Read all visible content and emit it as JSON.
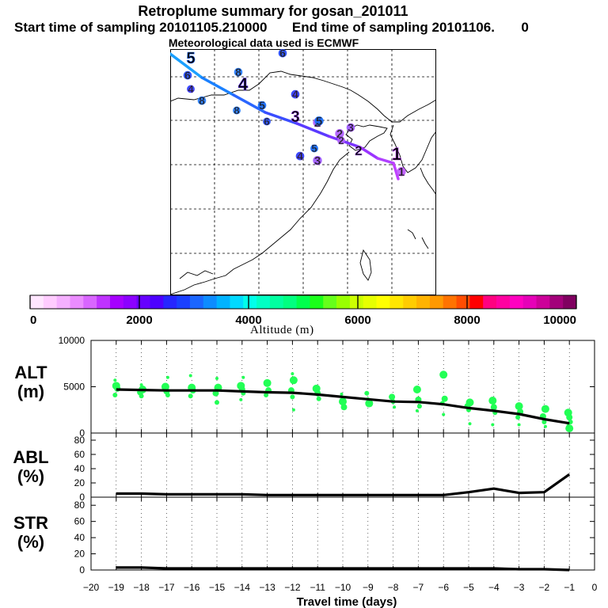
{
  "header": {
    "title": "Retroplume summary for gosan_201011",
    "start_label": "Start time of sampling 20101105.210000",
    "end_label": "End time of sampling 20101106.",
    "end_suffix": "0",
    "met_label": "Meteorological data used is ECMWF"
  },
  "colorbar": {
    "title": "Altitude (m)",
    "ticks": [
      "0",
      "2000",
      "4000",
      "6000",
      "8000",
      "10000"
    ],
    "colors": [
      "#ffe6ff",
      "#ffccff",
      "#f5b0ff",
      "#eb8cff",
      "#d966ff",
      "#bf33ff",
      "#a600ff",
      "#8c00ff",
      "#6600ff",
      "#4d00ff",
      "#2626ff",
      "#1a40ff",
      "#1a66ff",
      "#0d8cff",
      "#00b3ff",
      "#00d9ff",
      "#00ffea",
      "#00ffc4",
      "#00ffa0",
      "#00ff80",
      "#00ff4d",
      "#1aff1a",
      "#66ff1a",
      "#99ff00",
      "#ccff00",
      "#e6ff00",
      "#ffff00",
      "#ffe600",
      "#ffcc00",
      "#ffb300",
      "#ff9900",
      "#ff7300",
      "#ff4d00",
      "#ff0000",
      "#ff0080",
      "#ff00a0",
      "#ff00c0",
      "#e600b8",
      "#cc0099",
      "#a3007a",
      "#800060"
    ]
  },
  "panels": {
    "alt": {
      "label": "ALT",
      "unit": "(m)",
      "yticks": [
        "0",
        "5000",
        "10000"
      ]
    },
    "abl": {
      "label": "ABL",
      "unit": "(%)",
      "yticks": [
        "0",
        "20",
        "40",
        "60",
        "80"
      ]
    },
    "str": {
      "label": "STR",
      "unit": "(%)",
      "yticks": [
        "0",
        "20",
        "40",
        "60",
        "80"
      ]
    },
    "xlabel": "Travel time (days)",
    "xticks": [
      "−20",
      "−19",
      "−18",
      "−17",
      "−16",
      "−15",
      "−14",
      "−13",
      "−12",
      "−11",
      "−10",
      "−9",
      "−8",
      "−7",
      "−6",
      "−5",
      "−4",
      "−3",
      "−2",
      "−1",
      "0"
    ]
  },
  "map": {
    "day_markers": [
      {
        "label": "1",
        "color": "#c040ff"
      },
      {
        "label": "2",
        "color": "#b060ff"
      },
      {
        "label": "3",
        "color": "#a040ff"
      },
      {
        "label": "4",
        "color": "#6030ff"
      },
      {
        "label": "5",
        "color": "#1a66ff"
      },
      {
        "label": "6",
        "color": "#3050ff"
      },
      {
        "label": "8",
        "color": "#2a78ff"
      }
    ]
  },
  "chart_data": [
    {
      "type": "line",
      "title": "ALT",
      "ylabel": "ALT (m)",
      "xlabel": "Travel time (days)",
      "xlim": [
        -20,
        0
      ],
      "ylim": [
        0,
        10000
      ],
      "series": [
        {
          "name": "median altitude",
          "x": [
            -19,
            -18,
            -17,
            -16,
            -15,
            -14,
            -13,
            -12,
            -11,
            -10,
            -9,
            -8,
            -7,
            -6,
            -5,
            -4,
            -3,
            -2,
            -1
          ],
          "values": [
            4700,
            4650,
            4600,
            4600,
            4600,
            4500,
            4400,
            4350,
            4150,
            3900,
            3650,
            3400,
            3350,
            3100,
            2700,
            2400,
            2050,
            1500,
            1050
          ]
        }
      ],
      "scatter": {
        "name": "particle clusters",
        "points": [
          [
            -19,
            5700
          ],
          [
            -19,
            5100
          ],
          [
            -19,
            4800
          ],
          [
            -19,
            4100
          ],
          [
            -18,
            5200
          ],
          [
            -18,
            4700
          ],
          [
            -18,
            4400
          ],
          [
            -18,
            4000
          ],
          [
            -17,
            6000
          ],
          [
            -17,
            5000
          ],
          [
            -17,
            4500
          ],
          [
            -17,
            4100
          ],
          [
            -16,
            6200
          ],
          [
            -16,
            4900
          ],
          [
            -16,
            4600
          ],
          [
            -16,
            4000
          ],
          [
            -15,
            5900
          ],
          [
            -15,
            4900
          ],
          [
            -15,
            4300
          ],
          [
            -15,
            3300
          ],
          [
            -14,
            6000
          ],
          [
            -14,
            5100
          ],
          [
            -14,
            4700
          ],
          [
            -14,
            4300
          ],
          [
            -14,
            3600
          ],
          [
            -13,
            5400
          ],
          [
            -13,
            4600
          ],
          [
            -13,
            4100
          ],
          [
            -12,
            6400
          ],
          [
            -12,
            5700
          ],
          [
            -12,
            4600
          ],
          [
            -12,
            3900
          ],
          [
            -12,
            2500
          ],
          [
            -11,
            4800
          ],
          [
            -11,
            4300
          ],
          [
            -11,
            3700
          ],
          [
            -10,
            4200
          ],
          [
            -10,
            3400
          ],
          [
            -10,
            2800
          ],
          [
            -9,
            4300
          ],
          [
            -9,
            3700
          ],
          [
            -9,
            3200
          ],
          [
            -8,
            3900
          ],
          [
            -8,
            3400
          ],
          [
            -8,
            2800
          ],
          [
            -7,
            4700
          ],
          [
            -7,
            3600
          ],
          [
            -7,
            2900
          ],
          [
            -7,
            2400
          ],
          [
            -6,
            6300
          ],
          [
            -6,
            3700
          ],
          [
            -6,
            3200
          ],
          [
            -6,
            2000
          ],
          [
            -5,
            3300
          ],
          [
            -5,
            2900
          ],
          [
            -5,
            2500
          ],
          [
            -5,
            1000
          ],
          [
            -4,
            3500
          ],
          [
            -4,
            2800
          ],
          [
            -4,
            2200
          ],
          [
            -4,
            900
          ],
          [
            -3,
            2900
          ],
          [
            -3,
            2300
          ],
          [
            -3,
            1700
          ],
          [
            -3,
            900
          ],
          [
            -2,
            2600
          ],
          [
            -2,
            1800
          ],
          [
            -2,
            1200
          ],
          [
            -2,
            700
          ],
          [
            -1,
            2200
          ],
          [
            -1,
            1700
          ],
          [
            -1,
            1200
          ],
          [
            -1,
            800
          ],
          [
            -1,
            500
          ]
        ]
      }
    },
    {
      "type": "line",
      "title": "ABL",
      "ylabel": "ABL (%)",
      "xlim": [
        -20,
        0
      ],
      "ylim": [
        0,
        90
      ],
      "series": [
        {
          "name": "ABL fraction",
          "x": [
            -19,
            -18,
            -17,
            -16,
            -15,
            -14,
            -13,
            -12,
            -11,
            -10,
            -9,
            -8,
            -7,
            -6,
            -5,
            -4,
            -3,
            -2,
            -1
          ],
          "values": [
            5,
            5,
            4,
            4,
            4,
            4,
            3,
            3,
            3,
            3,
            3,
            3,
            3,
            3,
            7,
            12,
            6,
            7,
            32
          ]
        }
      ]
    },
    {
      "type": "line",
      "title": "STR",
      "ylabel": "STR (%)",
      "xlim": [
        -20,
        0
      ],
      "ylim": [
        0,
        90
      ],
      "series": [
        {
          "name": "STR fraction",
          "x": [
            -19,
            -18,
            -17,
            -16,
            -15,
            -14,
            -13,
            -12,
            -11,
            -10,
            -9,
            -8,
            -7,
            -6,
            -5,
            -4,
            -3,
            -2,
            -1
          ],
          "values": [
            3,
            3,
            2,
            2,
            2,
            2,
            2,
            2,
            2,
            2,
            2,
            2,
            2,
            2,
            2,
            2,
            1,
            1,
            0
          ]
        }
      ]
    }
  ]
}
